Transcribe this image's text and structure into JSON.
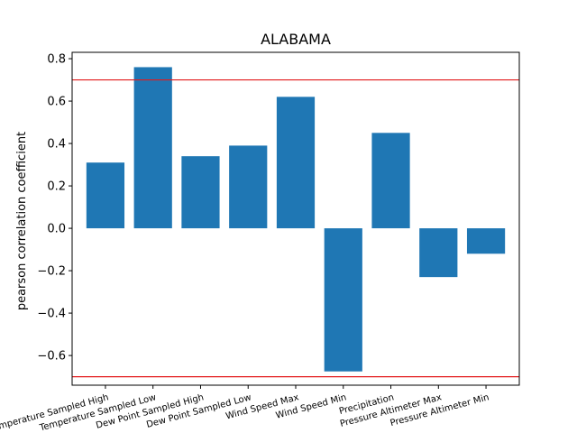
{
  "chart_data": {
    "type": "bar",
    "title": "ALABAMA",
    "xlabel": "",
    "ylabel": "pearson correlation coefficient",
    "categories": [
      "Temperature Sampled High",
      "Temperature Sampled Low",
      "Dew Point Sampled High",
      "Dew Point Sampled Low",
      "Wind Speed Max",
      "Wind Speed Min",
      "Precipitation",
      "Pressure Altimeter Max",
      "Pressure Altimeter Min"
    ],
    "values": [
      0.31,
      0.76,
      0.34,
      0.39,
      0.62,
      -0.675,
      0.45,
      -0.23,
      -0.12
    ],
    "ylim": [
      -0.74,
      0.83
    ],
    "yticks": [
      -0.6,
      -0.4,
      -0.2,
      0.0,
      0.2,
      0.4,
      0.6,
      0.8
    ],
    "ytick_labels": [
      "−0.6",
      "−0.4",
      "−0.2",
      "0.0",
      "0.2",
      "0.4",
      "0.6",
      "0.8"
    ],
    "reference_lines": [
      0.7,
      -0.7
    ],
    "grid": false,
    "colors": {
      "bar": "#1f77b4",
      "reference_line": "#e31a1c",
      "axes": "#000000"
    }
  }
}
